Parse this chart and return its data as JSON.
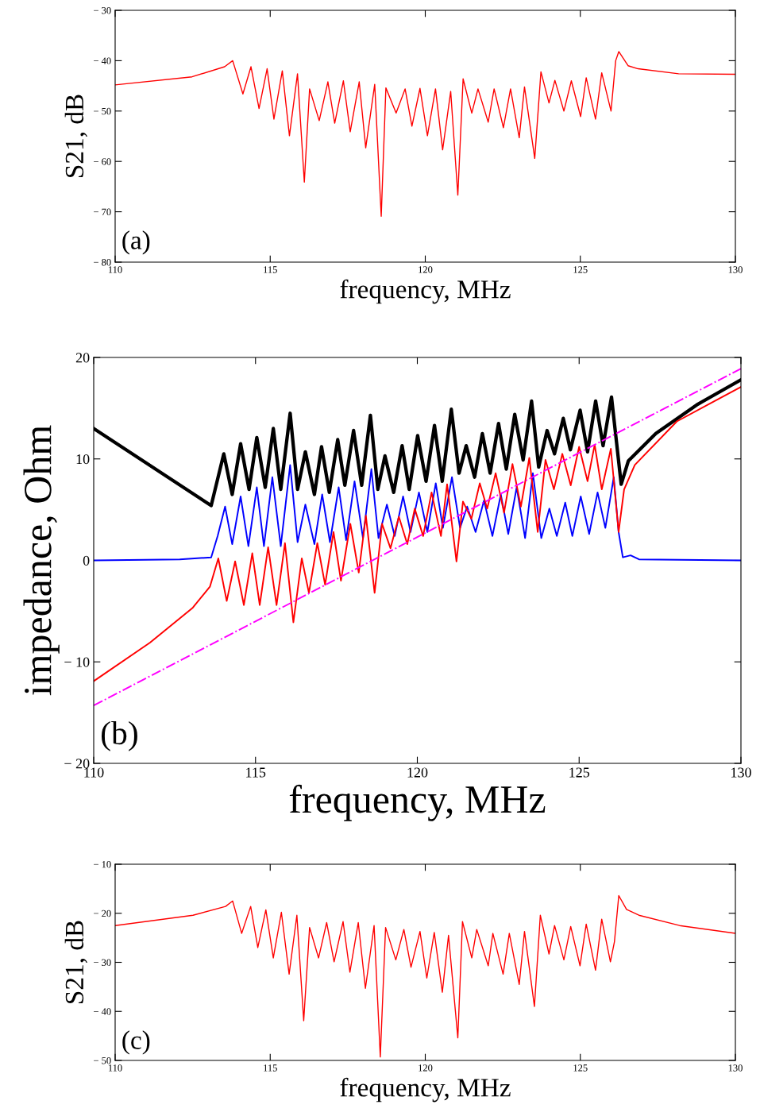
{
  "chart_data": [
    {
      "type": "line",
      "xlabel": "frequency, MHz",
      "ylabel": "S21, dB",
      "annotations": [
        "(a)"
      ],
      "xlim": [
        110,
        130
      ],
      "xticks": [
        110,
        115,
        120,
        125,
        130
      ],
      "ylim": [
        -80,
        -30
      ],
      "yticks": [
        {
          "value": -80,
          "label": "− 80"
        },
        {
          "value": -70,
          "label": "− 70"
        },
        {
          "value": -60,
          "label": "− 60"
        },
        {
          "value": -50,
          "label": "− 50"
        },
        {
          "value": -40,
          "label": "− 40"
        },
        {
          "value": -30,
          "label": "− 30"
        }
      ],
      "grid": false,
      "series": [
        {
          "color": "#ff0000",
          "x": [
            110,
            112.48,
            113.53,
            113.79,
            114.12,
            114.38,
            114.64,
            114.9,
            115.12,
            115.39,
            115.62,
            115.88,
            116.1,
            116.27,
            116.58,
            116.86,
            117.08,
            117.36,
            117.58,
            117.87,
            118.08,
            118.37,
            118.58,
            118.73,
            119.06,
            119.35,
            119.57,
            119.83,
            120.07,
            120.33,
            120.56,
            120.82,
            121.05,
            121.22,
            121.5,
            121.7,
            122.03,
            122.22,
            122.52,
            122.75,
            123.03,
            123.2,
            123.53,
            123.73,
            123.99,
            124.18,
            124.47,
            124.71,
            125.01,
            125.19,
            125.49,
            125.69,
            125.99,
            126.14,
            126.24,
            126.54,
            126.86,
            128.17,
            130
          ],
          "values": [
            -44.8,
            -43.2,
            -41.2,
            -40.0,
            -46.6,
            -41.2,
            -49.5,
            -41.6,
            -51.6,
            -42.0,
            -54.9,
            -42.6,
            -64.1,
            -45.6,
            -51.9,
            -44.2,
            -52.4,
            -44.0,
            -54.1,
            -44.2,
            -57.3,
            -44.7,
            -70.9,
            -45.4,
            -50.4,
            -45.6,
            -53.0,
            -45.5,
            -54.9,
            -45.6,
            -57.7,
            -46.1,
            -66.7,
            -43.6,
            -50.4,
            -45.6,
            -52.2,
            -45.6,
            -53.3,
            -45.6,
            -55.3,
            -45.2,
            -59.4,
            -42.2,
            -48.4,
            -43.9,
            -50.0,
            -44.0,
            -51.1,
            -43.4,
            -51.6,
            -42.4,
            -50.0,
            -40.0,
            -38.2,
            -41.0,
            -41.6,
            -42.6,
            -42.7
          ]
        }
      ]
    },
    {
      "type": "line",
      "xlabel": "frequency, MHz",
      "ylabel": "impedance, Ohm",
      "annotations": [
        "(b)"
      ],
      "xlim": [
        110,
        130
      ],
      "xticks": [
        110,
        115,
        120,
        125,
        130
      ],
      "ylim": [
        -20,
        20
      ],
      "yticks": [
        {
          "value": -20,
          "label": "− 20"
        },
        {
          "value": -10,
          "label": "− 10"
        },
        0,
        10,
        20
      ],
      "grid": false,
      "series": [
        {
          "color": "#000000",
          "x": [
            110,
            113.63,
            114.02,
            114.28,
            114.54,
            114.8,
            115.04,
            115.3,
            115.55,
            115.78,
            116.07,
            116.3,
            116.54,
            116.82,
            117.04,
            117.28,
            117.54,
            117.76,
            118.03,
            118.28,
            118.55,
            118.78,
            119.0,
            119.27,
            119.53,
            119.75,
            120.01,
            120.27,
            120.53,
            120.77,
            121.05,
            121.29,
            121.51,
            121.77,
            122.01,
            122.25,
            122.51,
            122.75,
            123.01,
            123.27,
            123.53,
            123.75,
            124.01,
            124.24,
            124.51,
            124.73,
            125.03,
            125.26,
            125.51,
            125.74,
            126.0,
            126.3,
            126.52,
            127.37,
            128.67,
            130
          ],
          "values": [
            13.0,
            5.4,
            10.5,
            6.5,
            11.5,
            7.0,
            12.1,
            7.2,
            13.0,
            7.0,
            14.5,
            7.0,
            10.7,
            6.5,
            11.2,
            6.7,
            11.9,
            7.4,
            12.8,
            7.4,
            14.3,
            7.0,
            10.3,
            6.7,
            11.3,
            7.0,
            12.3,
            7.8,
            13.3,
            7.8,
            14.9,
            8.6,
            11.3,
            8.2,
            12.5,
            8.6,
            13.5,
            9.0,
            14.4,
            9.9,
            15.7,
            9.2,
            12.8,
            10.5,
            14.0,
            10.9,
            14.8,
            10.7,
            15.7,
            11.3,
            16.1,
            7.5,
            9.8,
            12.5,
            15.4,
            17.8
          ]
        },
        {
          "color": "#0000ff",
          "x": [
            110,
            112.66,
            113.63,
            113.83,
            114.06,
            114.28,
            114.54,
            114.78,
            115.04,
            115.26,
            115.52,
            115.78,
            116.07,
            116.3,
            116.54,
            116.82,
            117.06,
            117.3,
            117.57,
            117.8,
            118.06,
            118.32,
            118.58,
            118.8,
            119.06,
            119.3,
            119.56,
            119.79,
            120.05,
            120.31,
            120.57,
            120.79,
            121.07,
            121.32,
            121.54,
            121.8,
            122.06,
            122.32,
            122.58,
            122.81,
            123.07,
            123.33,
            123.57,
            123.83,
            124.08,
            124.31,
            124.57,
            124.79,
            125.05,
            125.31,
            125.57,
            125.81,
            126.07,
            126.22,
            126.35,
            126.59,
            126.85,
            130
          ],
          "values": [
            0,
            0.1,
            0.3,
            2.4,
            5.3,
            1.6,
            6.3,
            1.4,
            7.2,
            1.4,
            8.2,
            1.4,
            9.4,
            1.8,
            5.5,
            1.6,
            6.5,
            1.8,
            7.2,
            2.0,
            7.8,
            2.2,
            9.0,
            2.2,
            5.5,
            2.4,
            6.3,
            2.8,
            6.7,
            2.8,
            7.6,
            3.2,
            8.2,
            3.2,
            5.3,
            2.8,
            5.9,
            2.4,
            6.5,
            2.6,
            7.2,
            2.2,
            8.6,
            2.2,
            5.1,
            2.4,
            5.7,
            2.4,
            6.3,
            2.6,
            6.7,
            3.2,
            8.2,
            2.8,
            0.3,
            0.5,
            0.1,
            0
          ]
        },
        {
          "color": "#ff0000",
          "x": [
            110,
            111.74,
            113.05,
            113.59,
            113.85,
            114.11,
            114.37,
            114.64,
            114.9,
            115.13,
            115.39,
            115.65,
            115.91,
            116.17,
            116.43,
            116.65,
            116.91,
            117.15,
            117.41,
            117.64,
            117.93,
            118.19,
            118.41,
            118.68,
            118.91,
            119.17,
            119.43,
            119.69,
            119.92,
            120.18,
            120.44,
            120.73,
            120.92,
            121.21,
            121.41,
            121.67,
            121.93,
            122.16,
            122.42,
            122.68,
            122.94,
            123.2,
            123.46,
            123.72,
            123.96,
            124.22,
            124.48,
            124.74,
            125.0,
            125.26,
            125.48,
            125.7,
            125.98,
            126.22,
            126.39,
            126.72,
            128.02,
            130
          ],
          "values": [
            -11.9,
            -8.1,
            -4.7,
            -2.6,
            0.2,
            -4.0,
            -0.1,
            -4.4,
            0.7,
            -4.4,
            1.3,
            -4.4,
            1.7,
            -6.1,
            0.2,
            -3.2,
            1.7,
            -2.4,
            2.8,
            -2.0,
            3.6,
            -1.2,
            4.4,
            -3.2,
            3.6,
            1.2,
            4.3,
            1.6,
            5.1,
            2.4,
            6.7,
            2.4,
            7.5,
            -0.1,
            5.8,
            4.1,
            7.6,
            5.1,
            8.6,
            4.7,
            9.5,
            5.3,
            10.1,
            2.8,
            9.9,
            7.0,
            10.5,
            7.4,
            11.2,
            7.8,
            11.4,
            7.0,
            11.0,
            2.8,
            7.0,
            9.4,
            13.7,
            17.1
          ]
        },
        {
          "color": "#ff00ff",
          "line_style": "dashdot",
          "x": [
            110,
            130
          ],
          "values": [
            -14.3,
            18.9
          ]
        }
      ]
    },
    {
      "type": "line",
      "xlabel": "frequency, MHz",
      "ylabel": "S21, dB",
      "annotations": [
        "(c)"
      ],
      "xlim": [
        110,
        130
      ],
      "xticks": [
        110,
        115,
        120,
        125,
        130
      ],
      "ylim": [
        -50,
        -10
      ],
      "yticks": [
        {
          "value": -50,
          "label": "− 50"
        },
        {
          "value": -40,
          "label": "− 40"
        },
        {
          "value": -30,
          "label": "− 30"
        },
        {
          "value": -20,
          "label": "− 20"
        },
        {
          "value": -10,
          "label": "− 10"
        }
      ],
      "grid": false,
      "series": [
        {
          "color": "#ff0000",
          "x": [
            110,
            112.51,
            113.56,
            113.79,
            114.08,
            114.37,
            114.6,
            114.86,
            115.1,
            115.36,
            115.61,
            115.86,
            116.08,
            116.27,
            116.56,
            116.82,
            117.06,
            117.35,
            117.57,
            117.84,
            118.07,
            118.35,
            118.55,
            118.72,
            119.05,
            119.31,
            119.54,
            119.83,
            120.05,
            120.29,
            120.55,
            120.75,
            121.05,
            121.2,
            121.5,
            121.66,
            122.03,
            122.18,
            122.51,
            122.71,
            123.03,
            123.2,
            123.52,
            123.71,
            123.99,
            124.17,
            124.47,
            124.69,
            124.99,
            125.19,
            125.49,
            125.69,
            125.97,
            126.1,
            126.24,
            126.49,
            126.89,
            128.2,
            130
          ],
          "values": [
            -22.5,
            -20.4,
            -18.6,
            -17.5,
            -24.1,
            -18.6,
            -27.0,
            -19.3,
            -29.1,
            -19.8,
            -32.4,
            -20.4,
            -41.9,
            -22.9,
            -29.1,
            -21.9,
            -29.9,
            -21.7,
            -32.0,
            -21.9,
            -35.3,
            -22.5,
            -49.3,
            -22.9,
            -29.5,
            -23.3,
            -31.0,
            -23.7,
            -33.2,
            -23.9,
            -36.1,
            -24.5,
            -45.4,
            -21.7,
            -29.1,
            -23.3,
            -30.7,
            -24.1,
            -32.4,
            -24.1,
            -34.5,
            -23.7,
            -39.0,
            -20.4,
            -28.3,
            -22.5,
            -29.5,
            -22.7,
            -30.7,
            -22.2,
            -31.6,
            -21.2,
            -29.9,
            -25.8,
            -16.4,
            -19.2,
            -20.4,
            -22.5,
            -24.1
          ]
        }
      ]
    }
  ]
}
